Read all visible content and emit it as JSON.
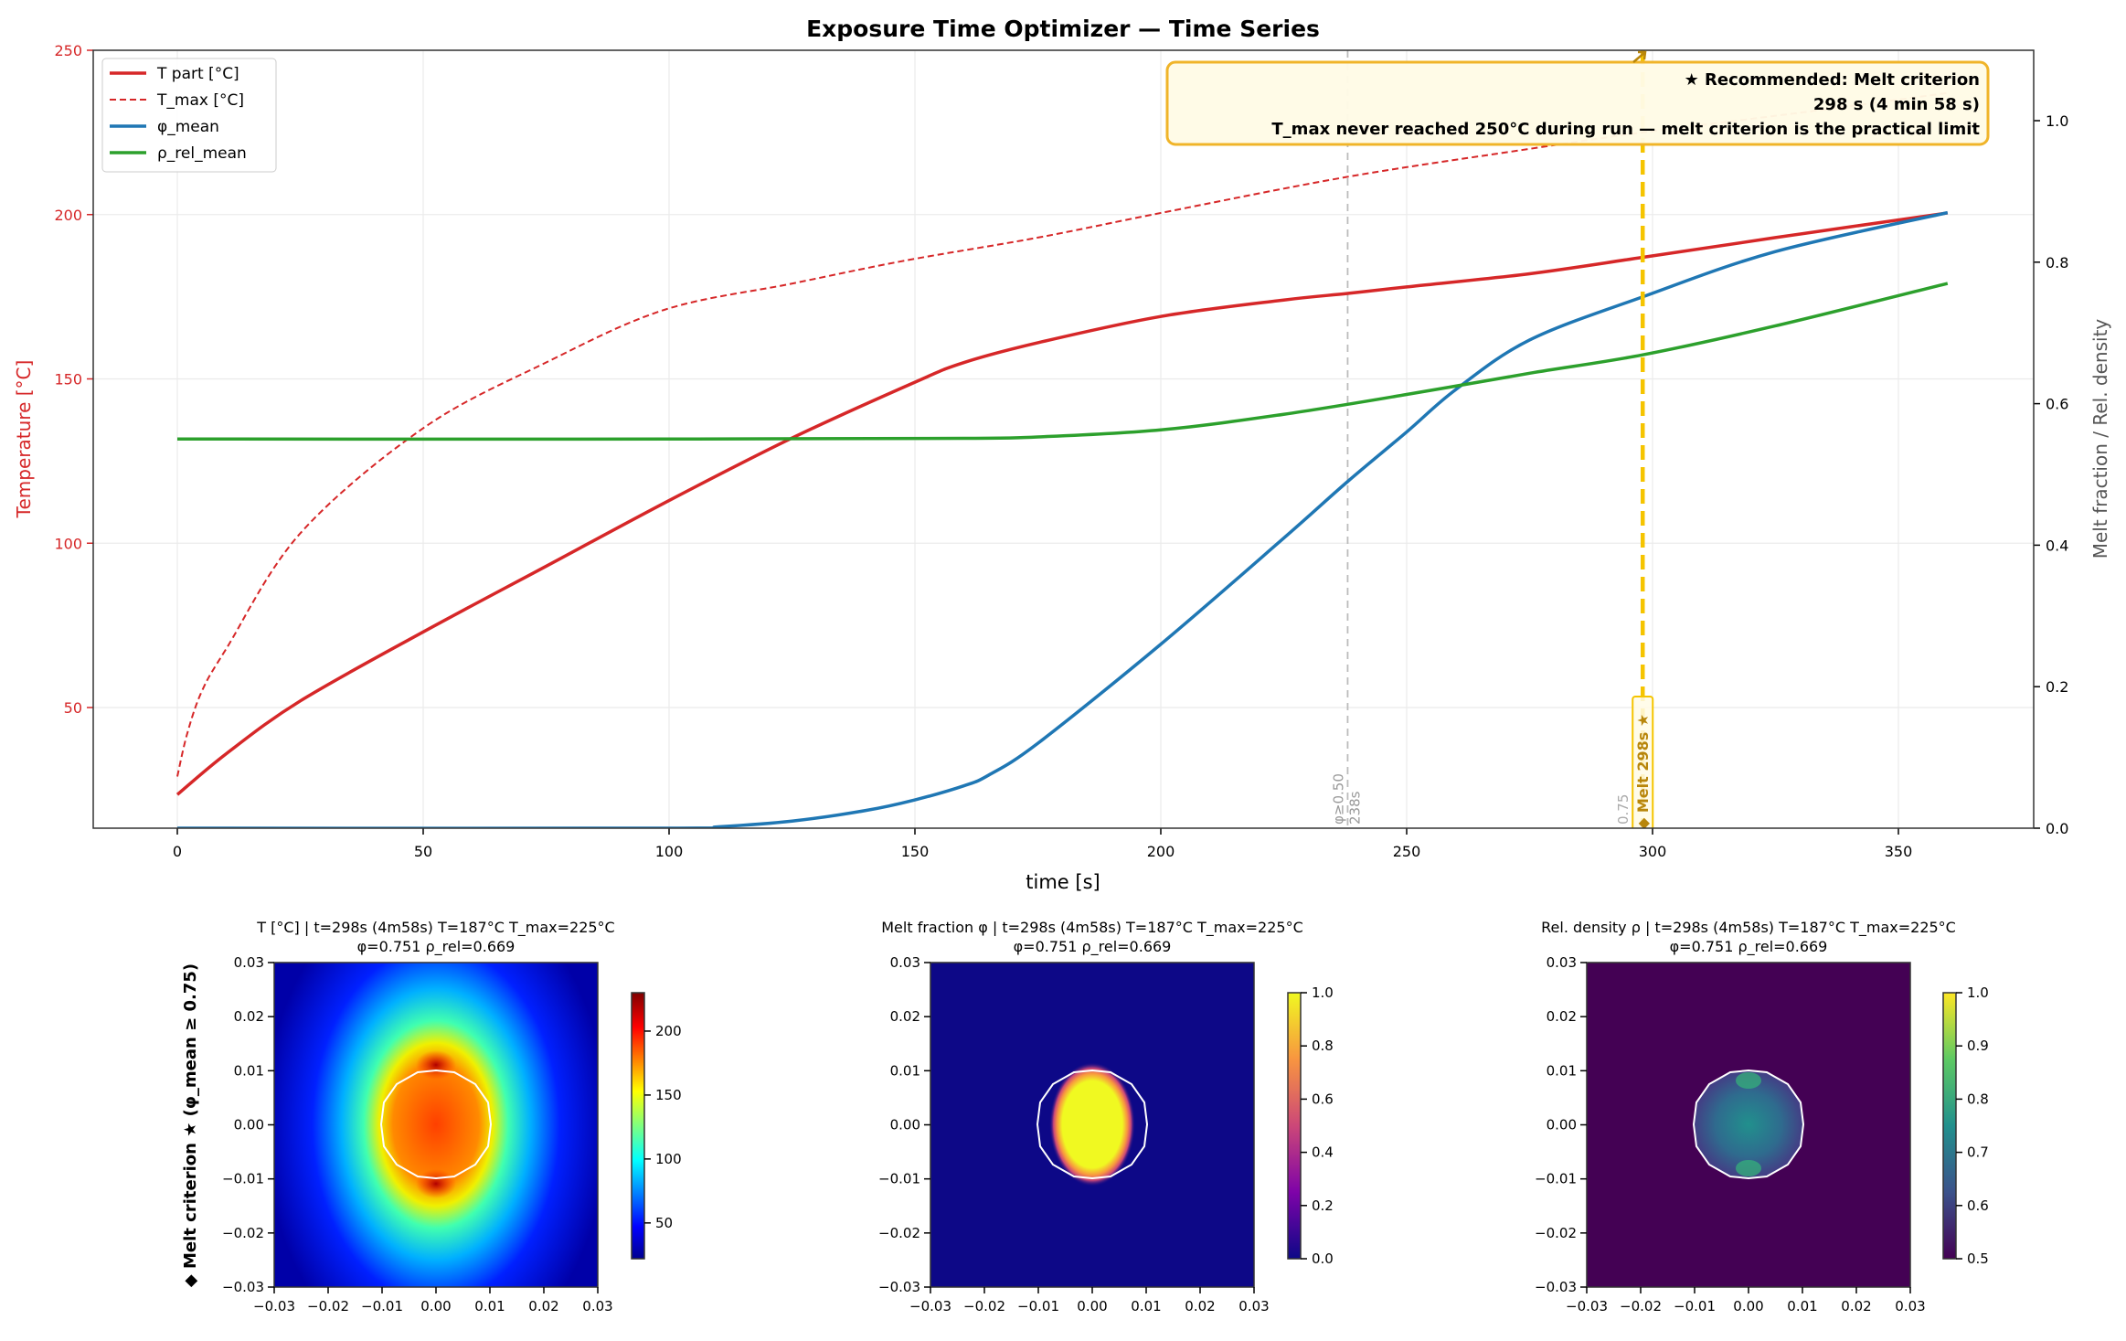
{
  "title": "Exposure Time Optimizer — Time Series",
  "chart_data": [
    {
      "type": "line",
      "xlabel": "time [s]",
      "ylabel_left": "Temperature [°C]",
      "ylabel_right": "Melt fraction / Rel. density",
      "xlim": [
        -17,
        378
      ],
      "ylim_left": [
        13.3,
        250
      ],
      "ylim_right": [
        0,
        1.1
      ],
      "xticks": [
        0,
        50,
        100,
        150,
        200,
        250,
        300,
        350
      ],
      "yticks_left": [
        50,
        100,
        150,
        200,
        250
      ],
      "yticks_right": [
        "0.0",
        "0.2",
        "0.4",
        "0.6",
        "0.8",
        "1.0"
      ],
      "grid": true,
      "legend_position": "top-left",
      "colors": {
        "T_part": "#d62728",
        "T_max": "#d62728",
        "phi": "#1f77b4",
        "rho": "#2ca02c",
        "left_axis": "#d62728",
        "recommended": "#f5c400"
      },
      "series": [
        {
          "name": "T part [°C]",
          "axis": "left",
          "style": "solid",
          "x": [
            0,
            10,
            25,
            50,
            75,
            100,
            125,
            150,
            160,
            175,
            200,
            225,
            238,
            250,
            275,
            298,
            325,
            360
          ],
          "y": [
            23.5,
            36,
            52,
            73,
            93,
            113,
            132,
            149,
            155,
            161,
            169,
            174,
            176,
            178,
            182,
            187,
            193,
            200.5
          ]
        },
        {
          "name": "T_max [°C]",
          "axis": "left",
          "style": "dashed",
          "x": [
            0,
            2,
            5,
            10,
            25,
            50,
            75,
            99,
            125,
            148,
            175,
            200,
            238,
            275,
            298,
            330,
            360
          ],
          "y": [
            29,
            42,
            55,
            68,
            103,
            135,
            155,
            171,
            179,
            186,
            193,
            200.5,
            211.5,
            220,
            225,
            231,
            237
          ]
        },
        {
          "name": "φ_mean",
          "axis": "right",
          "style": "solid",
          "x": [
            0,
            100,
            110,
            125,
            140,
            150,
            160,
            165,
            175,
            200,
            225,
            238,
            250,
            260,
            275,
            298,
            325,
            360
          ],
          "y": [
            0,
            0,
            0.002,
            0.01,
            0.025,
            0.04,
            0.06,
            0.075,
            0.12,
            0.26,
            0.41,
            0.49,
            0.56,
            0.62,
            0.69,
            0.751,
            0.815,
            0.87
          ]
        },
        {
          "name": "ρ_rel_mean",
          "axis": "right",
          "style": "solid",
          "x": [
            0,
            100,
            160,
            175,
            200,
            225,
            250,
            275,
            298,
            325,
            360
          ],
          "y": [
            0.55,
            0.55,
            0.551,
            0.553,
            0.563,
            0.585,
            0.613,
            0.643,
            0.669,
            0.71,
            0.77
          ]
        }
      ],
      "vlines": [
        {
          "x": 238,
          "label1": "φ≥0.50",
          "label2": "238s",
          "color": "#bbbbbb"
        },
        {
          "x": 298,
          "label": "◆ Melt  298s ★",
          "hidden_label": "0.75",
          "color": "#f5c400"
        }
      ],
      "annotation": {
        "line1": "★ Recommended: Melt criterion",
        "line2": "298 s  (4 min 58 s)",
        "line3": "T_max never reached 250°C during run — melt criterion is the practical limit"
      }
    },
    {
      "type": "heatmap",
      "title_line1": "T [°C]  |  t=298s (4m58s)  T=187°C  T_max=225°C",
      "title_line2": "φ=0.751  ρ_rel=0.669",
      "ylabel": "◆ Melt criterion ★  (φ_mean ≥ 0.75)",
      "xlim": [
        -0.03,
        0.03
      ],
      "ylim": [
        -0.03,
        0.03
      ],
      "colormap": "jet",
      "clim": [
        22,
        230
      ],
      "colorbar_ticks": [
        50,
        100,
        150,
        200
      ]
    },
    {
      "type": "heatmap",
      "title_line1": "Melt fraction φ  |  t=298s (4m58s)  T=187°C  T_max=225°C",
      "title_line2": "φ=0.751  ρ_rel=0.669",
      "xlim": [
        -0.03,
        0.03
      ],
      "ylim": [
        -0.03,
        0.03
      ],
      "colormap": "plasma",
      "clim": [
        0,
        1
      ],
      "colorbar_ticks": [
        "0.0",
        "0.2",
        "0.4",
        "0.6",
        "0.8",
        "1.0"
      ]
    },
    {
      "type": "heatmap",
      "title_line1": "Rel. density ρ  |  t=298s (4m58s)  T=187°C  T_max=225°C",
      "title_line2": "φ=0.751  ρ_rel=0.669",
      "xlim": [
        -0.03,
        0.03
      ],
      "ylim": [
        -0.03,
        0.03
      ],
      "colormap": "viridis",
      "clim": [
        0.5,
        1
      ],
      "colorbar_ticks": [
        "0.5",
        "0.6",
        "0.7",
        "0.8",
        "0.9",
        "1.0"
      ]
    }
  ],
  "heatmap_ticks": [
    "−0.03",
    "−0.02",
    "−0.01",
    "0.00",
    "0.01",
    "0.02",
    "0.03"
  ]
}
